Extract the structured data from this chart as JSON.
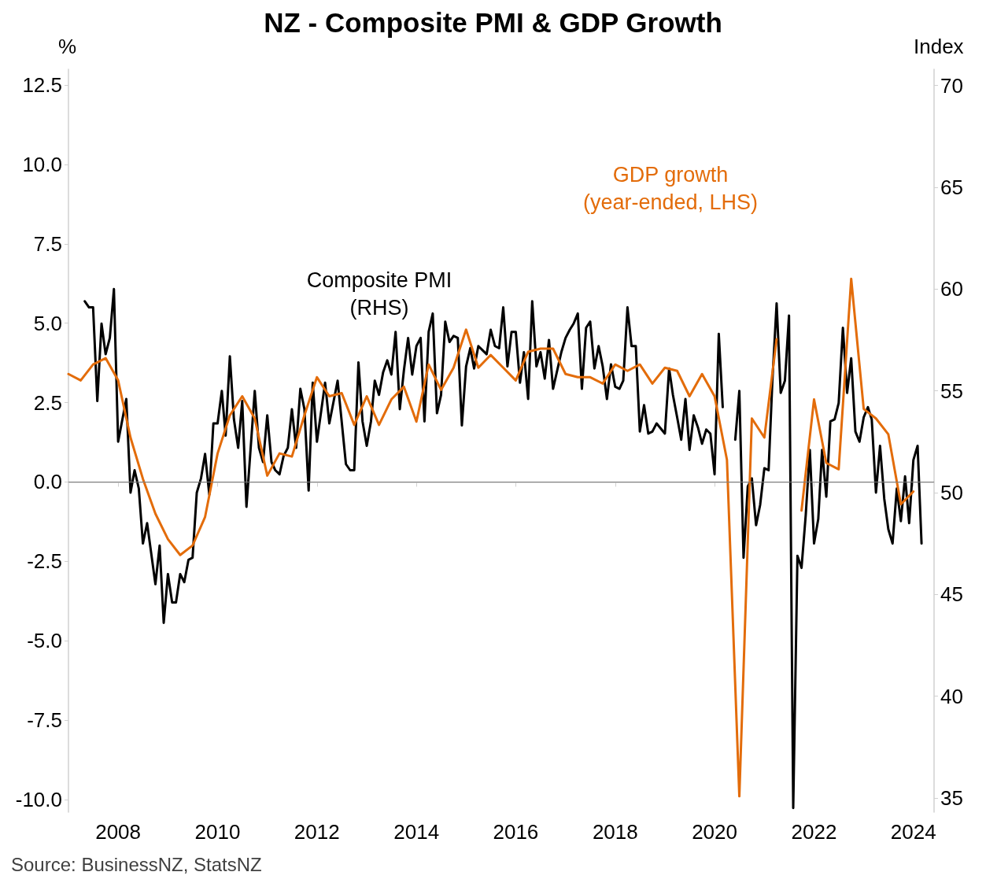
{
  "chart_data": {
    "type": "line",
    "title": "NZ - Composite PMI & GDP Growth",
    "ylabel": "%",
    "y2label": "Index",
    "annotations": [
      "Source: BusinessNZ, StatsNZ"
    ],
    "xlim": [
      "2007-01",
      "2024-06"
    ],
    "xticks": [
      {
        "value": "2008",
        "label": "2008"
      },
      {
        "value": "2010",
        "label": "2010"
      },
      {
        "value": "2012",
        "label": "2012"
      },
      {
        "value": "2014",
        "label": "2014"
      },
      {
        "value": "2016",
        "label": "2016"
      },
      {
        "value": "2018",
        "label": "2018"
      },
      {
        "value": "2020",
        "label": "2020"
      },
      {
        "value": "2022",
        "label": "2022"
      },
      {
        "value": "2024",
        "label": "2024"
      }
    ],
    "ylim": [
      -10.4,
      13.0
    ],
    "yticks": [
      {
        "value": -10,
        "label": "-10.0"
      },
      {
        "value": -7.5,
        "label": "-7.5"
      },
      {
        "value": -5,
        "label": "-5.0"
      },
      {
        "value": -2.5,
        "label": "-2.5"
      },
      {
        "value": 0,
        "label": "0.0"
      },
      {
        "value": 2.5,
        "label": "2.5"
      },
      {
        "value": 5,
        "label": "5.0"
      },
      {
        "value": 7.5,
        "label": "7.5"
      },
      {
        "value": 10,
        "label": "10.0"
      },
      {
        "value": 12.5,
        "label": "12.5"
      }
    ],
    "y2lim": [
      34.3,
      70.8
    ],
    "y2ticks": [
      35,
      40,
      45,
      50,
      55,
      60,
      65,
      70
    ],
    "grid": false,
    "legend": false,
    "marker": "none",
    "line_style": "solid",
    "ref_lines": [
      {
        "axis": "y",
        "value": 0,
        "label": null,
        "color": "#808080"
      }
    ],
    "series": [
      {
        "name": "Composite PMI\n(RHS)",
        "color": "#000000",
        "axis": "y2",
        "x": [
          "2007-05",
          "2007-06",
          "2007-07",
          "2007-08",
          "2007-09",
          "2007-10",
          "2007-11",
          "2007-12",
          "2008-01",
          "2008-03",
          "2008-04",
          "2008-05",
          "2008-06",
          "2008-07",
          "2008-08",
          "2008-10",
          "2008-11",
          "2008-12",
          "2009-01",
          "2009-02",
          "2009-03",
          "2009-04",
          "2009-05",
          "2009-06",
          "2009-07",
          "2009-08",
          "2009-09",
          "2009-10",
          "2009-11",
          "2009-12",
          "2010-01",
          "2010-02",
          "2010-03",
          "2010-04",
          "2010-05",
          "2010-06",
          "2010-07",
          "2010-08",
          "2010-10",
          "2010-11",
          "2010-12",
          "2011-01",
          "2011-02",
          "2011-03",
          "2011-04",
          "2011-05",
          "2011-06",
          "2011-07",
          "2011-08",
          "2011-09",
          "2011-10",
          "2011-11",
          "2011-12",
          "2012-01",
          "2012-03",
          "2012-04",
          "2012-06",
          "2012-08",
          "2012-09",
          "2012-10",
          "2012-11",
          "2012-12",
          "2013-01",
          "2013-02",
          "2013-03",
          "2013-04",
          "2013-05",
          "2013-06",
          "2013-07",
          "2013-08",
          "2013-09",
          "2013-10",
          "2013-11",
          "2013-12",
          "2014-01",
          "2014-02",
          "2014-03",
          "2014-04",
          "2014-05",
          "2014-06",
          "2014-07",
          "2014-08",
          "2014-09",
          "2014-10",
          "2014-11",
          "2014-12",
          "2015-01",
          "2015-02",
          "2015-03",
          "2015-04",
          "2015-05",
          "2015-06",
          "2015-07",
          "2015-08",
          "2015-09",
          "2015-10",
          "2015-11",
          "2015-12",
          "2016-01",
          "2016-02",
          "2016-03",
          "2016-04",
          "2016-05",
          "2016-06",
          "2016-07",
          "2016-08",
          "2016-09",
          "2016-10",
          "2016-12",
          "2017-01",
          "2017-02",
          "2017-03",
          "2017-04",
          "2017-05",
          "2017-06",
          "2017-07",
          "2017-08",
          "2017-09",
          "2017-10",
          "2017-11",
          "2017-12",
          "2018-01",
          "2018-02",
          "2018-03",
          "2018-04",
          "2018-05",
          "2018-06",
          "2018-07",
          "2018-08",
          "2018-09",
          "2018-10",
          "2018-11",
          "2019-01",
          "2019-02",
          "2019-03",
          "2019-04",
          "2019-05",
          "2019-06",
          "2019-07",
          "2019-08",
          "2019-09",
          "2019-10",
          "2019-11",
          "2019-12",
          "2020-01",
          "2020-02",
          "2020-03",
          "2020-04",
          "2020-05",
          "2020-06",
          "2020-07",
          "2020-08",
          "2020-09",
          "2020-10",
          "2020-11",
          "2020-12",
          "2021-01",
          "2021-02",
          "2021-03",
          "2021-04",
          "2021-05",
          "2021-06",
          "2021-07",
          "2021-08",
          "2021-09",
          "2021-10",
          "2021-11",
          "2021-12",
          "2022-01",
          "2022-02",
          "2022-03",
          "2022-04",
          "2022-05",
          "2022-06",
          "2022-07",
          "2022-08",
          "2022-09",
          "2022-10",
          "2022-11",
          "2022-12",
          "2023-01",
          "2023-02",
          "2023-03",
          "2023-04",
          "2023-05",
          "2023-06",
          "2023-07",
          "2023-08",
          "2023-09",
          "2023-10",
          "2023-11",
          "2023-12",
          "2024-01",
          "2024-02",
          "2024-03"
        ],
        "values": [
          59.4,
          59.1,
          59.1,
          54.5,
          58.3,
          56.8,
          57.6,
          60.0,
          52.5,
          54.6,
          50.0,
          51.1,
          50.2,
          47.5,
          48.5,
          45.5,
          47.4,
          43.6,
          46.0,
          44.6,
          44.6,
          46.0,
          45.6,
          46.7,
          46.8,
          50.0,
          50.7,
          51.9,
          49.9,
          53.4,
          53.4,
          55.0,
          52.8,
          56.7,
          53.6,
          52.2,
          54.5,
          49.3,
          55.0,
          52.2,
          51.5,
          53.8,
          51.5,
          51.1,
          50.9,
          51.8,
          52.2,
          54.1,
          52.2,
          55.1,
          54.1,
          50.1,
          55.4,
          52.5,
          55.4,
          53.4,
          55.5,
          51.4,
          51.1,
          51.1,
          56.4,
          53.5,
          52.3,
          53.5,
          55.5,
          54.8,
          55.9,
          56.5,
          55.8,
          57.9,
          54.1,
          56.0,
          57.6,
          55.8,
          57.2,
          57.6,
          53.5,
          57.9,
          58.8,
          53.9,
          54.8,
          58.4,
          57.4,
          57.7,
          57.6,
          53.3,
          56.2,
          57.1,
          56.1,
          57.2,
          57.0,
          56.8,
          58.0,
          57.2,
          57.1,
          59.1,
          56.2,
          57.9,
          57.9,
          55.4,
          56.9,
          54.6,
          59.4,
          56.2,
          56.9,
          55.6,
          57.5,
          55.1,
          56.9,
          57.6,
          58.0,
          58.3,
          58.8,
          55.1,
          58.1,
          58.4,
          56.1,
          57.2,
          56.2,
          54.6,
          56.3,
          55.2,
          55.1,
          55.5,
          59.1,
          57.2,
          57.2,
          53.0,
          54.3,
          52.9,
          53.0,
          53.4,
          52.9,
          56.1,
          54.8,
          53.7,
          52.6,
          54.6,
          52.1,
          53.8,
          53.2,
          52.4,
          53.1,
          52.9,
          50.9,
          57.8,
          54.2,
          null,
          null,
          52.6,
          55.0,
          46.8,
          50.3,
          50.7,
          48.4,
          49.4,
          51.2,
          51.1,
          55.5,
          59.3,
          54.9,
          55.5,
          58.7,
          34.5,
          46.9,
          46.3,
          48.9,
          52.1,
          47.5,
          48.7,
          52.1,
          49.8,
          53.5,
          53.6,
          54.4,
          58.1,
          54.9,
          56.6,
          53.0,
          52.5,
          53.7,
          54.2,
          53.6,
          50.0,
          52.3,
          49.7,
          48.2,
          47.5,
          50.2,
          48.6,
          50.8,
          48.5,
          51.6,
          52.3,
          47.5
        ]
      },
      {
        "name": "GDP growth\n(year-ended, LHS)",
        "color": "#e36c0a",
        "x": [
          "2007-01",
          "2007-04",
          "2007-07",
          "2007-10",
          "2008-01",
          "2008-04",
          "2008-07",
          "2008-10",
          "2009-01",
          "2009-04",
          "2009-07",
          "2009-10",
          "2010-01",
          "2010-04",
          "2010-07",
          "2010-10",
          "2011-01",
          "2011-04",
          "2011-07",
          "2011-10",
          "2012-01",
          "2012-04",
          "2012-07",
          "2012-10",
          "2013-01",
          "2013-04",
          "2013-07",
          "2013-10",
          "2014-01",
          "2014-04",
          "2014-07",
          "2014-10",
          "2015-01",
          "2015-04",
          "2015-07",
          "2015-10",
          "2016-01",
          "2016-04",
          "2016-07",
          "2016-10",
          "2017-01",
          "2017-04",
          "2017-07",
          "2017-10",
          "2018-01",
          "2018-04",
          "2018-07",
          "2018-10",
          "2019-01",
          "2019-04",
          "2019-07",
          "2019-10",
          "2020-01",
          "2020-04",
          "2020-07",
          "2020-10",
          "2021-01",
          "2021-04",
          "2021-07",
          "2021-10",
          "2022-01",
          "2022-04",
          "2022-07",
          "2022-10",
          "2023-01",
          "2023-04",
          "2023-07",
          "2023-10",
          "2024-01"
        ],
        "values": [
          3.4,
          3.2,
          3.7,
          3.9,
          3.2,
          1.4,
          0.1,
          -1.0,
          -1.8,
          -2.3,
          -2.0,
          -1.1,
          0.9,
          2.1,
          2.7,
          2.0,
          0.2,
          0.9,
          0.8,
          2.1,
          3.3,
          2.7,
          2.8,
          1.8,
          2.7,
          1.8,
          2.6,
          3.0,
          1.9,
          3.7,
          2.9,
          3.6,
          4.8,
          3.6,
          4.0,
          3.6,
          3.2,
          4.1,
          4.2,
          4.2,
          3.4,
          3.3,
          3.3,
          3.1,
          3.7,
          3.5,
          3.7,
          3.1,
          3.6,
          3.5,
          2.7,
          3.4,
          2.7,
          0.7,
          -9.9,
          2.0,
          1.4,
          4.5,
          null,
          -0.9,
          2.6,
          0.6,
          0.4,
          6.4,
          2.3,
          2.0,
          1.5,
          -0.7,
          -0.3
        ]
      }
    ]
  }
}
